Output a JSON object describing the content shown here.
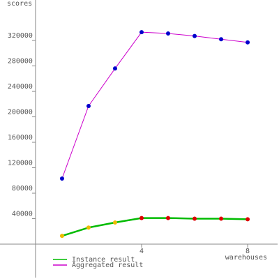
{
  "chart_data": {
    "type": "line",
    "y_label": "scores",
    "x_label": "warehouses",
    "x": [
      1,
      2,
      3,
      4,
      5,
      6,
      7,
      8
    ],
    "series": [
      {
        "name": "Instance result",
        "color": "#00bb00",
        "marker_colors": [
          "#eebb00",
          "#eebb00",
          "#eebb00",
          "#dd0000",
          "#dd0000",
          "#dd0000",
          "#dd0000",
          "#dd0000"
        ],
        "values": [
          13000,
          26000,
          34000,
          41000,
          41000,
          40000,
          40000,
          39000
        ]
      },
      {
        "name": "Aggregated result",
        "color": "#cc00cc",
        "marker_colors": [
          "#0000cc",
          "#0000cc",
          "#0000cc",
          "#0000cc",
          "#0000cc",
          "#0000cc",
          "#0000cc",
          "#0000cc"
        ],
        "values": [
          103000,
          217000,
          276000,
          333000,
          331000,
          327000,
          322000,
          317000
        ]
      }
    ],
    "xlim": [
      -1.34,
      9.13
    ],
    "xticks": [
      4,
      8
    ],
    "ylim": [
      -52600,
      383600
    ],
    "yticks": [
      40000,
      80000,
      120000,
      160000,
      200000,
      240000,
      280000,
      320000
    ]
  }
}
